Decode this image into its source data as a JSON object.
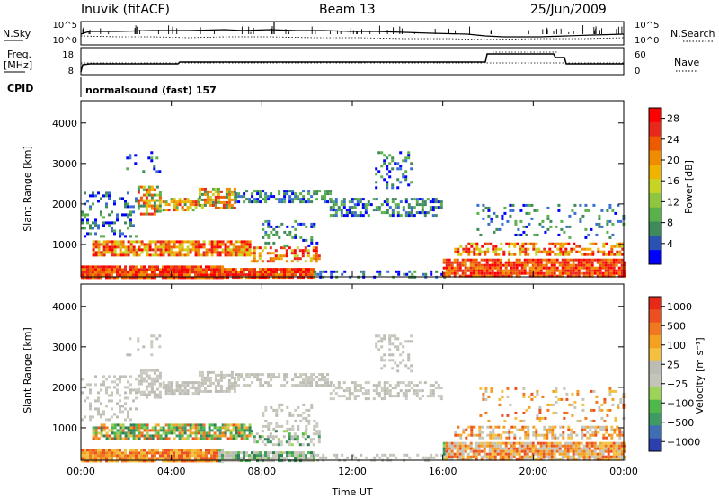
{
  "header": {
    "station": "Inuvik (fitACF)",
    "beam": "Beam 13",
    "date": "25/Jun/2009"
  },
  "top_panels": {
    "nsky_label": "N.Sky",
    "nsky_ticks": [
      "10^5",
      "10^0"
    ],
    "nsearch_label": "N.Search",
    "nsearch_ticks": [
      "10^5",
      "10^0"
    ],
    "freq_label_1": "Freq.",
    "freq_label_2": "[MHz]",
    "freq_ticks": [
      "18",
      "8"
    ],
    "nave_label": "Nave",
    "nave_ticks": [
      "60",
      "0"
    ],
    "cpid_label": "CPID",
    "cpid_value": "normalsound (fast) 157"
  },
  "chart_data": [
    {
      "type": "heatmap",
      "name": "power",
      "ylabel": "Slant Range [km]",
      "xlabel": "",
      "yticks": [
        "1000",
        "2000",
        "3000",
        "4000"
      ],
      "ylim": [
        200,
        4550
      ],
      "xlim_hours": [
        0,
        24
      ],
      "xticks": [
        "00:00",
        "04:00",
        "08:00",
        "12:00",
        "16:00",
        "20:00",
        "00:00"
      ],
      "colorbar": {
        "label": "Power [dB]",
        "ticks": [
          "4",
          "8",
          "12",
          "16",
          "20",
          "24",
          "28"
        ],
        "range": [
          0,
          30
        ],
        "colors": [
          "#0000ff",
          "#2a52b5",
          "#3f8a5a",
          "#5ab04a",
          "#8ec63f",
          "#c8d424",
          "#f0b400",
          "#f08c00",
          "#ee5a00",
          "#e8281a",
          "#ff0000"
        ]
      }
    },
    {
      "type": "heatmap",
      "name": "velocity",
      "ylabel": "Slant Range [km]",
      "xlabel": "Time UT",
      "yticks": [
        "1000",
        "2000",
        "3000",
        "4000"
      ],
      "ylim": [
        200,
        4550
      ],
      "xlim_hours": [
        0,
        24
      ],
      "xticks": [
        "00:00",
        "04:00",
        "08:00",
        "12:00",
        "16:00",
        "20:00",
        "00:00"
      ],
      "colorbar": {
        "label": "Velocity [m s⁻¹]",
        "ticks": [
          "1000",
          "500",
          "100",
          "25",
          "−25",
          "−100",
          "−500",
          "−1000"
        ],
        "colors": [
          "#2c3fae",
          "#3f6fb2",
          "#3f9a63",
          "#4fb84a",
          "#9ed35a",
          "#c4c4b8",
          "#bcbcb4",
          "#f4c040",
          "#f4a020",
          "#f07820",
          "#ec5020",
          "#e82818"
        ]
      }
    }
  ]
}
